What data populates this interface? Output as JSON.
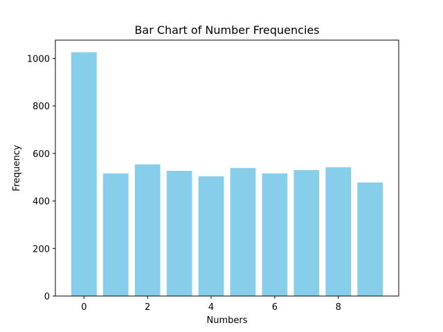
{
  "chart_data": {
    "type": "bar",
    "title": "Bar Chart of Number Frequencies",
    "xlabel": "Numbers",
    "ylabel": "Frequency",
    "categories": [
      0,
      1,
      2,
      3,
      4,
      5,
      6,
      7,
      8,
      9
    ],
    "values": [
      1026,
      516,
      554,
      527,
      504,
      539,
      516,
      530,
      542,
      478
    ],
    "bar_color": "#87CEEB",
    "xlim": [
      -0.9,
      9.9
    ],
    "ylim": [
      0,
      1077
    ],
    "x_ticks": [
      0,
      2,
      4,
      6,
      8
    ],
    "y_ticks": [
      0,
      200,
      400,
      600,
      800,
      1000
    ],
    "grid": false,
    "legend": "none"
  }
}
